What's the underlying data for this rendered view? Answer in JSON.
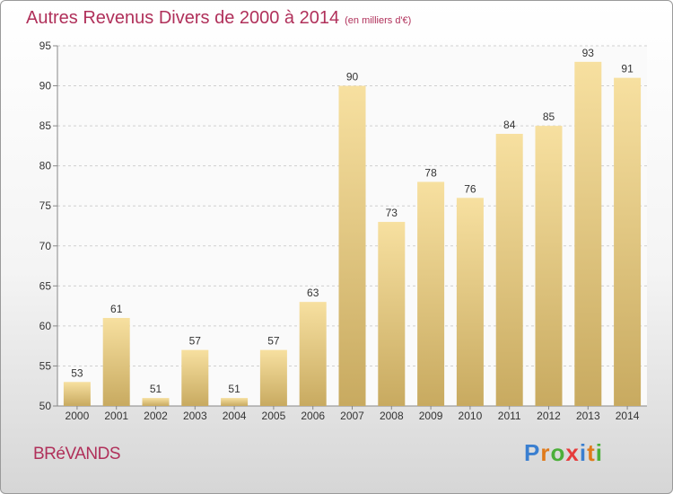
{
  "chart_data": {
    "type": "bar",
    "title": "Autres Revenus Divers de 2000 à 2014",
    "subtitle": "(en milliers d'€)",
    "categories": [
      "2000",
      "2001",
      "2002",
      "2003",
      "2004",
      "2005",
      "2006",
      "2007",
      "2008",
      "2009",
      "2010",
      "2011",
      "2012",
      "2013",
      "2014"
    ],
    "values": [
      53,
      61,
      51,
      57,
      51,
      57,
      63,
      90,
      73,
      78,
      76,
      84,
      85,
      93,
      91
    ],
    "ylim": [
      50,
      95
    ],
    "yticks": [
      50,
      55,
      60,
      65,
      70,
      75,
      80,
      85,
      90,
      95
    ],
    "grid": true,
    "bar_color_top": "#f7e0a0",
    "bar_color_bottom": "#c8aa60",
    "title_color": "#b0305a"
  },
  "footer": {
    "commune": "BRéVANDS",
    "logo": {
      "letters": [
        "P",
        "r",
        "o",
        "x",
        "i",
        "t",
        "i"
      ],
      "colors": [
        "#3a7fd0",
        "#e07a1a",
        "#4caf3a",
        "#e63c3c",
        "#3a7fd0",
        "#e07a1a",
        "#4caf3a"
      ]
    }
  }
}
